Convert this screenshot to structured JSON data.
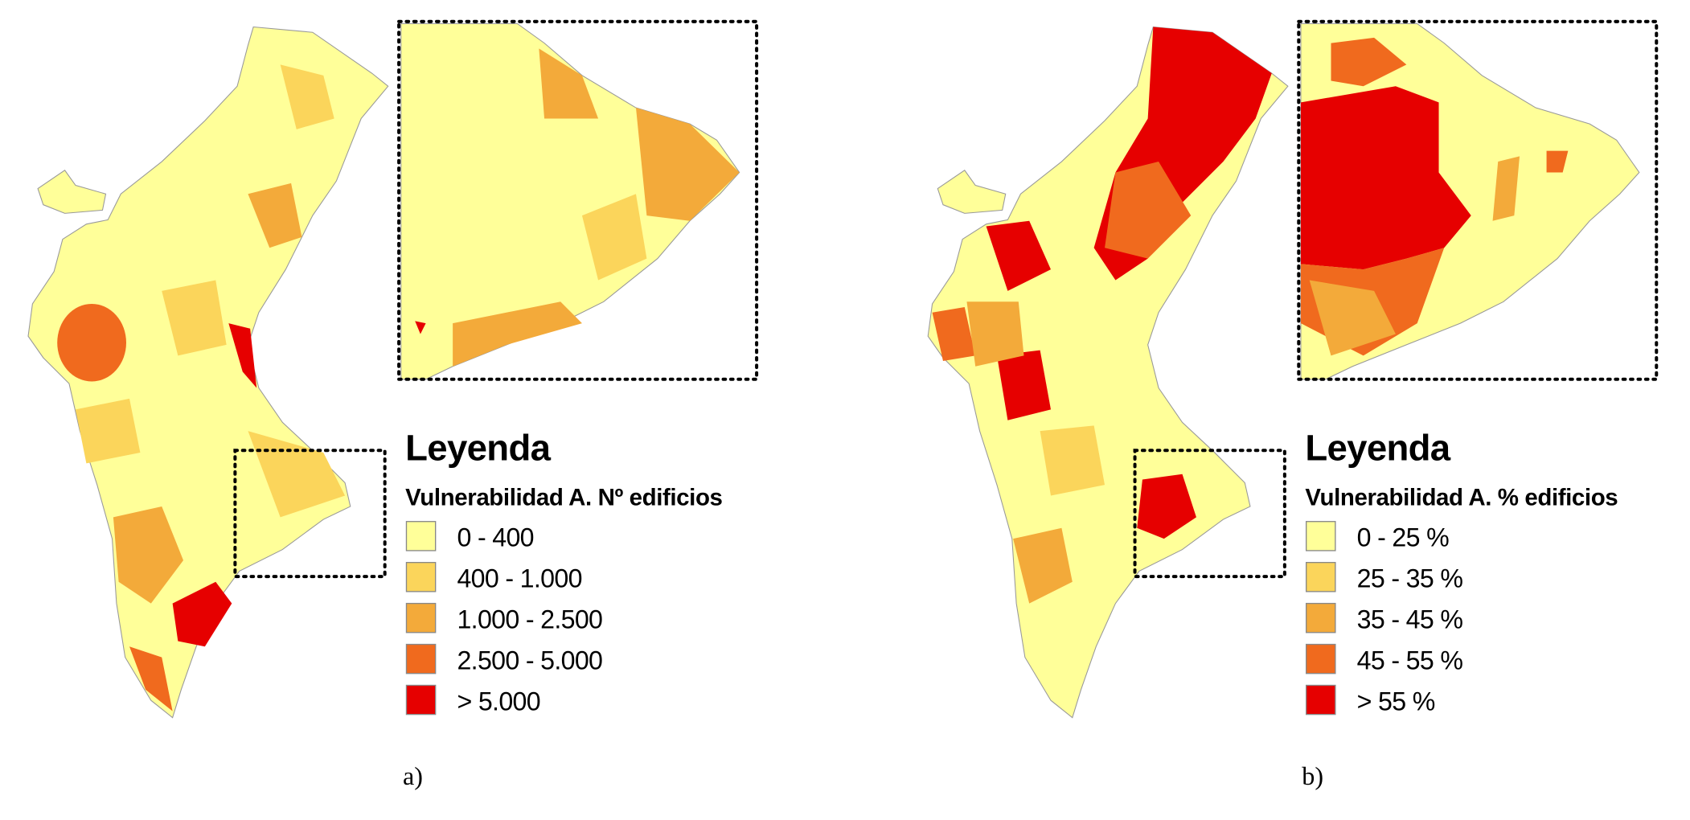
{
  "panels": [
    {
      "caption": "a)",
      "legend": {
        "title": "Leyenda",
        "subtitle": "Vulnerabilidad A. Nº edificios",
        "items": [
          {
            "label": "0 - 400",
            "color": "#ffff99"
          },
          {
            "label": "400 - 1.000",
            "color": "#fbd55b"
          },
          {
            "label": "1.000 - 2.500",
            "color": "#f3aa3a"
          },
          {
            "label": "2.500 - 5.000",
            "color": "#f06a1e"
          },
          {
            "label": "> 5.000",
            "color": "#e60000"
          }
        ]
      }
    },
    {
      "caption": "b)",
      "legend": {
        "title": "Leyenda",
        "subtitle": "Vulnerabilidad A. % edificios",
        "items": [
          {
            "label": "0 - 25 %",
            "color": "#ffff99"
          },
          {
            "label": "25 - 35 %",
            "color": "#fbd55b"
          },
          {
            "label": "35 - 45 %",
            "color": "#f3aa3a"
          },
          {
            "label": "45 - 55 %",
            "color": "#f06a1e"
          },
          {
            "label": "> 55 %",
            "color": "#e60000"
          }
        ]
      }
    }
  ]
}
